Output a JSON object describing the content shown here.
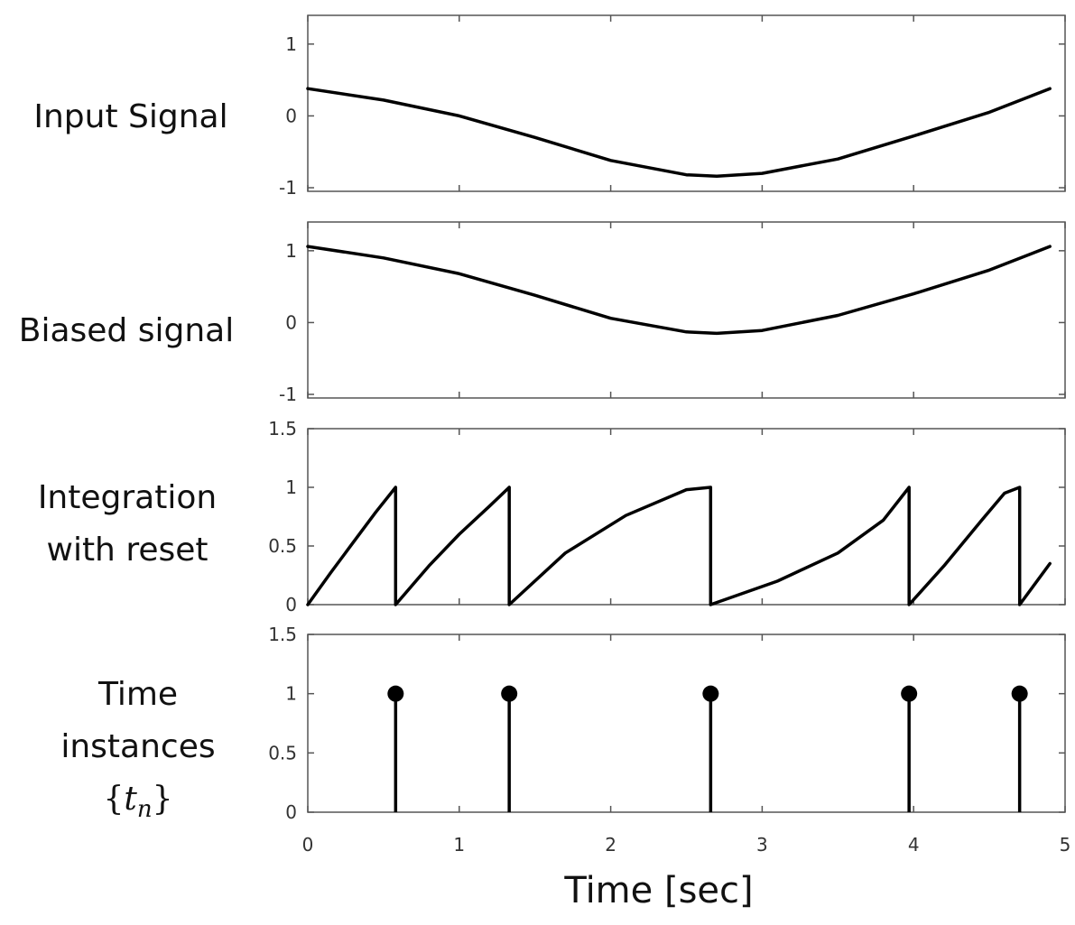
{
  "row_labels": [
    {
      "lines": [
        "Input Signal"
      ]
    },
    {
      "lines": [
        "Biased signal"
      ]
    },
    {
      "lines": [
        "Integration",
        "with reset"
      ]
    },
    {
      "lines": [
        "Time",
        "instances"
      ],
      "math": {
        "open": "{",
        "var": "t",
        "sub": "n",
        "close": "}"
      }
    }
  ],
  "xlabel": "Time [sec]",
  "chart_data": [
    {
      "type": "line",
      "name": "Input Signal",
      "xlim": [
        0,
        5
      ],
      "ylim": [
        -1.05,
        1.4
      ],
      "yticks": [
        1,
        0,
        -1
      ],
      "ytick_labels": [
        "1",
        "0",
        "-1"
      ],
      "x": [
        0,
        0.5,
        1.0,
        1.5,
        2.0,
        2.5,
        2.7,
        3.0,
        3.5,
        4.0,
        4.5,
        4.9
      ],
      "y": [
        0.38,
        0.22,
        0.0,
        -0.3,
        -0.62,
        -0.82,
        -0.84,
        -0.8,
        -0.6,
        -0.28,
        0.05,
        0.38
      ]
    },
    {
      "type": "line",
      "name": "Biased signal",
      "xlim": [
        0,
        5
      ],
      "ylim": [
        -1.05,
        1.4
      ],
      "yticks": [
        1,
        0,
        -1
      ],
      "ytick_labels": [
        "1",
        "0",
        "-1"
      ],
      "x": [
        0,
        0.5,
        1.0,
        1.5,
        2.0,
        2.5,
        2.7,
        3.0,
        3.5,
        4.0,
        4.5,
        4.9
      ],
      "y": [
        1.06,
        0.9,
        0.68,
        0.38,
        0.06,
        -0.13,
        -0.15,
        -0.11,
        0.1,
        0.4,
        0.73,
        1.06
      ]
    },
    {
      "type": "line",
      "name": "Integration with reset",
      "xlim": [
        0,
        5
      ],
      "ylim": [
        0,
        1.5
      ],
      "yticks": [
        1.5,
        1,
        0.5,
        0
      ],
      "ytick_labels": [
        "1.5",
        "1",
        "0.5",
        "0"
      ],
      "x": [
        0,
        0.15,
        0.3,
        0.45,
        0.58,
        0.58,
        0.8,
        1.0,
        1.2,
        1.33,
        1.33,
        1.7,
        2.1,
        2.5,
        2.66,
        2.66,
        3.1,
        3.5,
        3.8,
        3.97,
        3.97,
        4.2,
        4.45,
        4.6,
        4.7,
        4.7,
        4.9
      ],
      "y": [
        0,
        0.27,
        0.53,
        0.79,
        1.0,
        0,
        0.33,
        0.6,
        0.84,
        1.0,
        0,
        0.44,
        0.76,
        0.98,
        1.0,
        0,
        0.2,
        0.44,
        0.72,
        1.0,
        0,
        0.33,
        0.72,
        0.95,
        1.0,
        0,
        0.35
      ]
    },
    {
      "type": "scatter",
      "name": "Time instances",
      "xlim": [
        0,
        5
      ],
      "ylim": [
        0,
        1.5
      ],
      "yticks": [
        1.5,
        1,
        0.5,
        0
      ],
      "ytick_labels": [
        "1.5",
        "1",
        "0.5",
        "0"
      ],
      "xticks": [
        0,
        1,
        2,
        3,
        4,
        5
      ],
      "xtick_labels": [
        "0",
        "1",
        "2",
        "3",
        "4",
        "5"
      ],
      "x": [
        0.58,
        1.33,
        2.66,
        3.97,
        4.7
      ],
      "y": [
        1,
        1,
        1,
        1,
        1
      ]
    }
  ]
}
